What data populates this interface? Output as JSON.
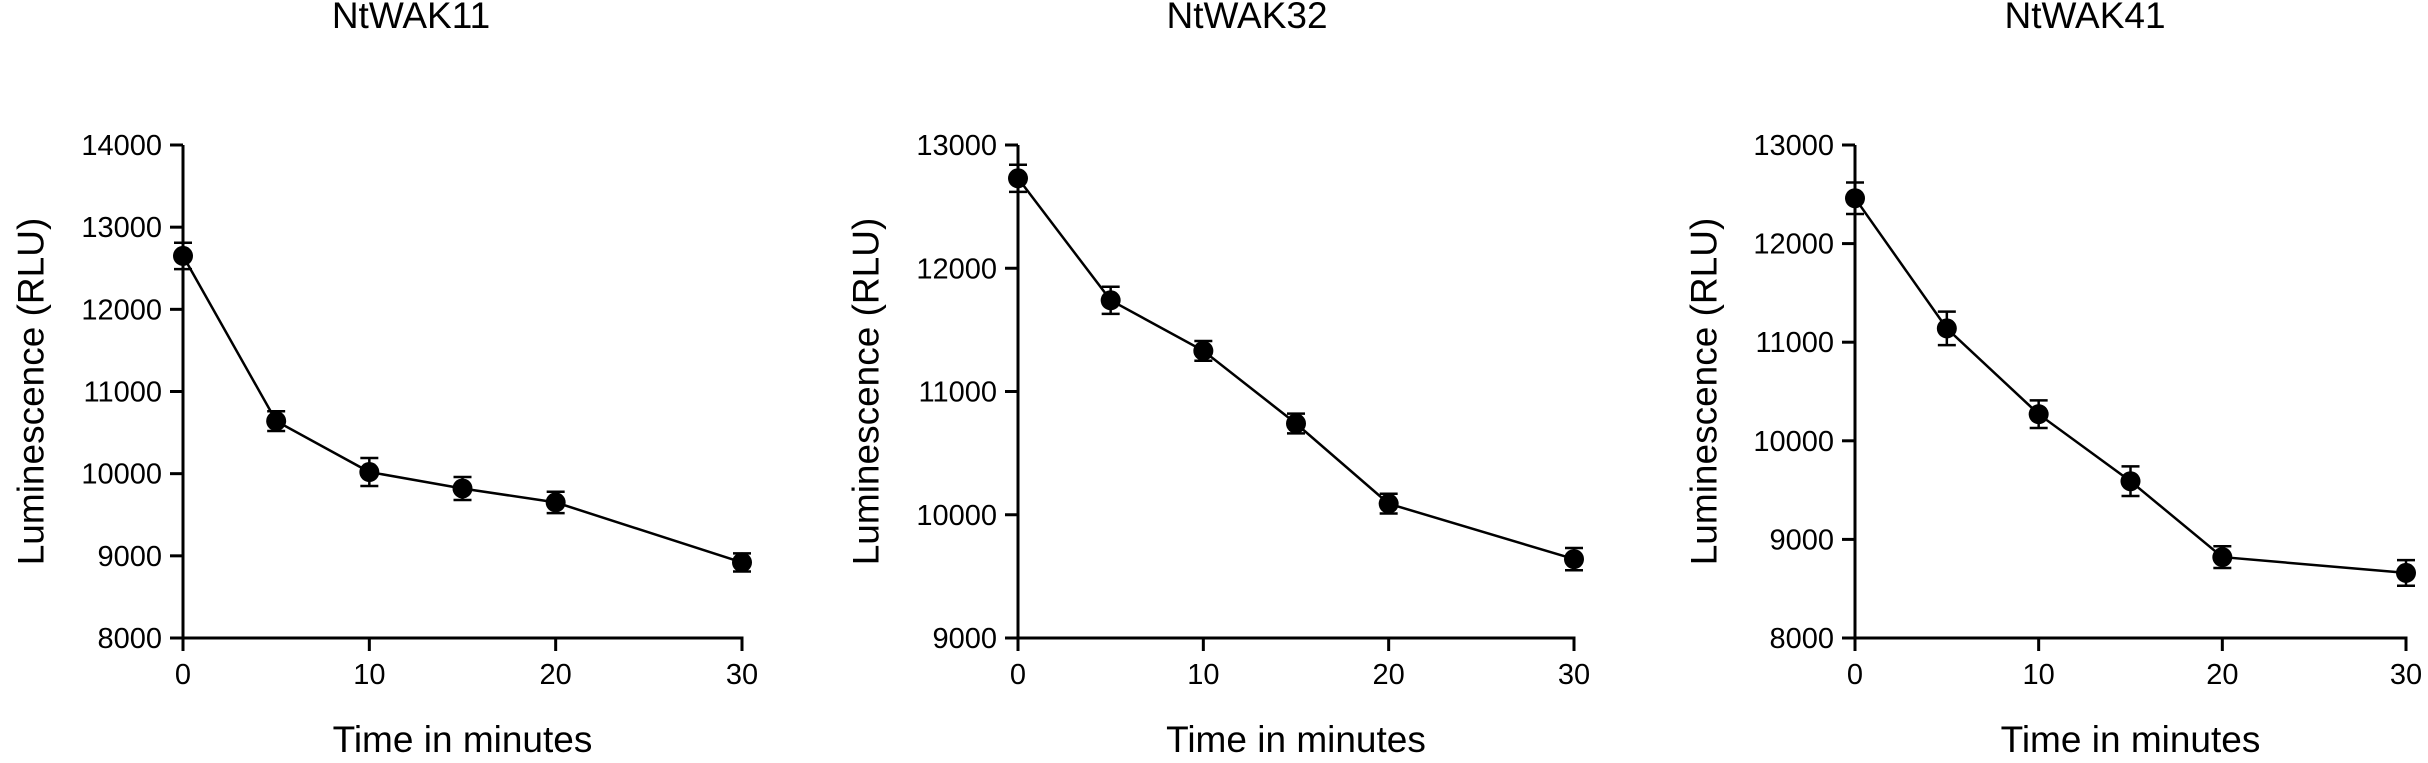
{
  "chart_data": [
    {
      "type": "line",
      "title": "NtWAK11",
      "xlabel": "Time in minutes",
      "ylabel": "Luminescence (RLU)",
      "x": [
        0,
        5,
        10,
        15,
        20,
        30
      ],
      "y": [
        12650,
        10640,
        10020,
        9820,
        9650,
        8920
      ],
      "error": [
        160,
        120,
        170,
        140,
        130,
        110
      ],
      "xlim": [
        0,
        30
      ],
      "ylim": [
        8000,
        14000
      ],
      "xticks": [
        0,
        10,
        20,
        30
      ],
      "yticks": [
        8000,
        9000,
        10000,
        11000,
        12000,
        13000,
        14000
      ],
      "color": "#000000",
      "grid": false
    },
    {
      "type": "line",
      "title": "NtWAK32",
      "xlabel": "Time in minutes",
      "ylabel": "Luminescence (RLU)",
      "x": [
        0,
        5,
        10,
        15,
        20,
        30
      ],
      "y": [
        12730,
        11740,
        11330,
        10740,
        10090,
        9640
      ],
      "error": [
        110,
        110,
        80,
        80,
        80,
        90
      ],
      "xlim": [
        0,
        30
      ],
      "ylim": [
        9000,
        13000
      ],
      "xticks": [
        0,
        10,
        20,
        30
      ],
      "yticks": [
        9000,
        10000,
        11000,
        12000,
        13000
      ],
      "color": "#000000",
      "grid": false
    },
    {
      "type": "line",
      "title": "NtWAK41",
      "xlabel": "Time in minutes",
      "ylabel": "Luminescence (RLU)",
      "x": [
        0,
        5,
        10,
        15,
        20,
        30
      ],
      "y": [
        12460,
        11140,
        10270,
        9590,
        8820,
        8660
      ],
      "error": [
        160,
        170,
        140,
        150,
        110,
        130
      ],
      "xlim": [
        0,
        30
      ],
      "ylim": [
        8000,
        13000
      ],
      "xticks": [
        0,
        10,
        20,
        30
      ],
      "yticks": [
        8000,
        9000,
        10000,
        11000,
        12000,
        13000
      ],
      "color": "#000000",
      "grid": false
    }
  ]
}
